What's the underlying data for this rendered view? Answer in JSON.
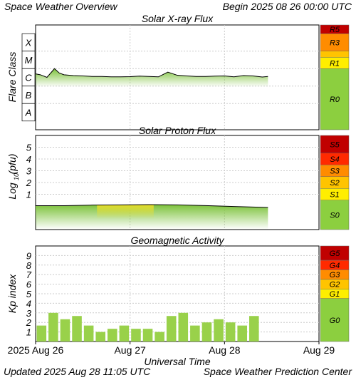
{
  "header": {
    "title": "Space Weather Overview",
    "begin": "Begin 2025 08 26 00:00 UTC"
  },
  "footer": {
    "updated": "Updated 2025 Aug 28 11:05 UTC",
    "center": "Space Weather Prediction Center"
  },
  "colors": {
    "extreme": "#c00000",
    "severe": "#ff2a00",
    "strong": "#ff8c00",
    "moderate": "#ffc400",
    "minor": "#ffee00",
    "quiet": "#8ccf3f",
    "kp_bar": "#99d14a",
    "flux_green": "#7cc23a",
    "flux_yellow": "#f2e12a"
  },
  "chart_data": [
    {
      "type": "area",
      "title": "Solar X-ray Flux",
      "ylabel": "Flare Class",
      "flare_classes": [
        "X",
        "M",
        "C",
        "B",
        "A"
      ],
      "scale_labels": [
        "R5",
        "R3",
        "R1",
        "R0"
      ],
      "x_days": [
        0,
        0.05,
        0.12,
        0.2,
        0.25,
        0.3,
        0.4,
        0.5,
        0.6,
        0.7,
        0.8,
        0.9,
        1.0,
        1.1,
        1.2,
        1.3,
        1.4,
        1.5,
        1.6,
        1.7,
        1.8,
        1.9,
        2.0,
        2.1,
        2.2,
        2.3,
        2.4,
        2.46
      ],
      "log_flux": [
        -5.8,
        -5.85,
        -6.0,
        -5.5,
        -5.75,
        -5.85,
        -5.9,
        -5.92,
        -5.95,
        -5.95,
        -5.97,
        -5.97,
        -5.96,
        -5.93,
        -5.95,
        -5.97,
        -5.7,
        -5.88,
        -5.92,
        -5.95,
        -5.95,
        -5.93,
        -5.92,
        -5.97,
        -5.9,
        -5.92,
        -5.98,
        -5.95
      ],
      "ylim": [
        -9,
        -3
      ]
    },
    {
      "type": "area",
      "title": "Solar Proton Flux",
      "ylabel": "Log10(pfu)",
      "yticks": [
        "5",
        "4",
        "3",
        "2",
        "1"
      ],
      "scale_labels": [
        "S5",
        "S4",
        "S3",
        "S2",
        "S1",
        "S0"
      ],
      "x_days": [
        0,
        0.3,
        0.6,
        0.9,
        1.2,
        1.5,
        1.8,
        2.1,
        2.46
      ],
      "log_pfu": [
        0.03,
        0.03,
        0.08,
        0.1,
        0.12,
        0.1,
        0.04,
        -0.04,
        -0.12
      ],
      "ylim": [
        -2,
        6
      ]
    },
    {
      "type": "bar",
      "title": "Geomagnetic Activity",
      "ylabel": "Kp index",
      "xlabel": "Universal Time",
      "yticks": [
        "9",
        "8",
        "7",
        "6",
        "5",
        "4",
        "3",
        "2",
        "1"
      ],
      "scale_labels": [
        "G5",
        "G4",
        "G3",
        "G2",
        "G1",
        "G0"
      ],
      "x_tick_labels": [
        "2025 Aug 26",
        "Aug 27",
        "Aug 28",
        "Aug 29"
      ],
      "values": [
        1.67,
        3,
        2.33,
        2.67,
        1.67,
        1,
        1.33,
        1.67,
        1.33,
        1.33,
        1,
        2.67,
        3,
        1.67,
        2,
        2.33,
        2,
        1.67,
        2.67
      ],
      "ylim": [
        0,
        10
      ]
    }
  ]
}
